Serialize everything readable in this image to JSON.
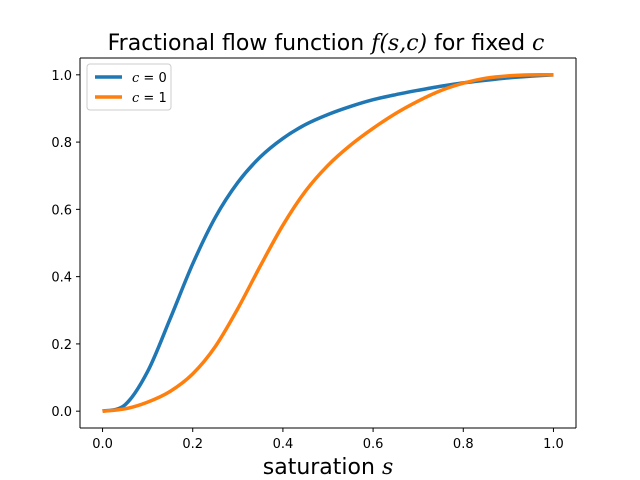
{
  "chart_data": {
    "type": "line",
    "title_prefix": "Fractional flow function ",
    "title_math": "f(s,c)",
    "title_mid": " for fixed ",
    "title_math2": "c",
    "xlabel_prefix": "saturation ",
    "xlabel_math": "s",
    "ylabel": "",
    "xlim": [
      -0.05,
      1.05
    ],
    "ylim": [
      -0.05,
      1.05
    ],
    "xticks": [
      0.0,
      0.2,
      0.4,
      0.6,
      0.8,
      1.0
    ],
    "xtick_labels": [
      "0.0",
      "0.2",
      "0.4",
      "0.6",
      "0.8",
      "1.0"
    ],
    "yticks": [
      0.0,
      0.2,
      0.4,
      0.6,
      0.8,
      1.0
    ],
    "ytick_labels": [
      "0.0",
      "0.2",
      "0.4",
      "0.6",
      "0.8",
      "1.0"
    ],
    "grid": false,
    "legend_position": "top-left",
    "series": [
      {
        "name": "c = 0",
        "name_math": "c",
        "name_value": "0",
        "color": "#1f77b4",
        "x": [
          0.0,
          0.05,
          0.1,
          0.15,
          0.2,
          0.25,
          0.3,
          0.35,
          0.4,
          0.45,
          0.5,
          0.55,
          0.6,
          0.65,
          0.7,
          0.75,
          0.8,
          0.85,
          0.9,
          0.95,
          1.0
        ],
        "y": [
          0.0,
          0.019,
          0.118,
          0.275,
          0.438,
          0.576,
          0.68,
          0.756,
          0.811,
          0.852,
          0.882,
          0.906,
          0.926,
          0.941,
          0.954,
          0.966,
          0.976,
          0.984,
          0.991,
          0.996,
          1.0
        ]
      },
      {
        "name": "c = 1",
        "name_math": "c",
        "name_value": "1",
        "color": "#ff7f0e",
        "x": [
          0.0,
          0.05,
          0.1,
          0.15,
          0.2,
          0.25,
          0.3,
          0.35,
          0.4,
          0.45,
          0.5,
          0.55,
          0.6,
          0.65,
          0.7,
          0.75,
          0.8,
          0.85,
          0.9,
          0.95,
          1.0
        ],
        "y": [
          0.0,
          0.007,
          0.027,
          0.059,
          0.111,
          0.192,
          0.305,
          0.432,
          0.553,
          0.654,
          0.731,
          0.791,
          0.841,
          0.885,
          0.922,
          0.953,
          0.975,
          0.99,
          0.997,
          1.0,
          1.0
        ]
      }
    ]
  }
}
